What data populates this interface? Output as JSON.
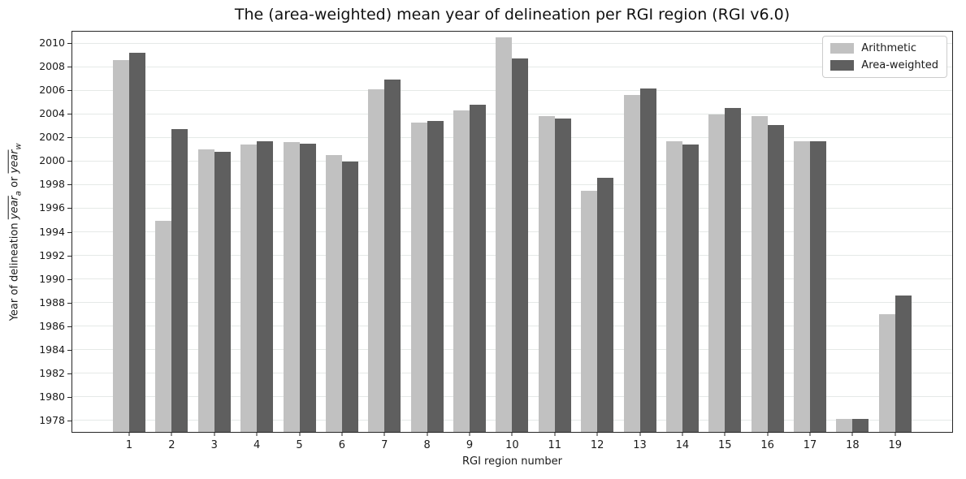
{
  "title": "The (area-weighted) mean year of delineation per RGI region (RGI v6.0)",
  "xlabel": "RGI region number",
  "ylabel": {
    "prefix": "Year of delineation ",
    "var1": "year",
    "sub1": "a",
    "conj": " or ",
    "var2": "year",
    "sub2": "w"
  },
  "legend": {
    "position": "upper-right",
    "items": [
      {
        "label": "Arithmetic",
        "color": "#c1c1c1"
      },
      {
        "label": "Area-weighted",
        "color": "#5f5f5f"
      }
    ]
  },
  "chart_data": {
    "type": "bar",
    "title": "The (area-weighted) mean year of delineation per RGI region (RGI v6.0)",
    "xlabel": "RGI region number",
    "ylabel": "Year of delineation year_a or year_w",
    "categories": [
      "1",
      "2",
      "3",
      "4",
      "5",
      "6",
      "7",
      "8",
      "9",
      "10",
      "11",
      "12",
      "13",
      "14",
      "15",
      "16",
      "17",
      "18",
      "19"
    ],
    "series": [
      {
        "name": "Arithmetic",
        "color": "#c1c1c1",
        "values": [
          2008.6,
          1994.9,
          2001.0,
          2001.4,
          2001.6,
          2000.5,
          2006.1,
          2003.3,
          2004.3,
          2010.5,
          2003.8,
          1997.5,
          2005.6,
          2001.7,
          2004.0,
          2003.8,
          2001.7,
          1978.1,
          1987.0
        ]
      },
      {
        "name": "Area-weighted",
        "color": "#5f5f5f",
        "values": [
          2009.2,
          2002.7,
          2000.8,
          2001.7,
          2001.5,
          2000.0,
          2006.9,
          2003.4,
          2004.8,
          2008.7,
          2003.6,
          1998.6,
          2006.2,
          2001.4,
          2004.5,
          2003.1,
          2001.7,
          1978.1,
          1988.6
        ]
      }
    ],
    "ylim": [
      1977,
      2011
    ],
    "yticks": [
      1978,
      1980,
      1982,
      1984,
      1986,
      1988,
      1990,
      1992,
      1994,
      1996,
      1998,
      2000,
      2002,
      2004,
      2006,
      2008,
      2010
    ],
    "grid": "horizontal",
    "legend_position": "upper right"
  }
}
